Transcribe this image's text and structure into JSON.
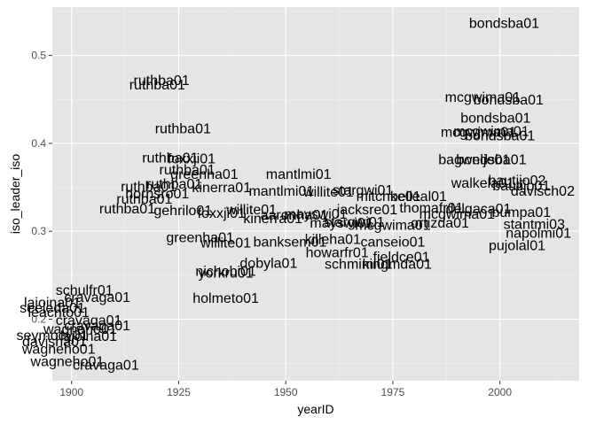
{
  "chart_data": {
    "type": "scatter",
    "title": "",
    "xlabel": "yearID",
    "ylabel": "iso_leader_iso",
    "xlim": [
      1895.5,
      2018.5
    ],
    "ylim": [
      0.13,
      0.555
    ],
    "x_ticks": [
      1900,
      1925,
      1950,
      1975,
      2000
    ],
    "y_ticks": [
      0.2,
      0.3,
      0.4,
      0.5
    ],
    "grid": true,
    "legend": "none",
    "colors": {
      "panel_bg": "#e5e5e5",
      "grid_major": "#ffffff",
      "grid_minor": "#f2f2f2",
      "text": "#000000",
      "tick_text": "#4d4d4d"
    },
    "points": [
      {
        "x": 2001,
        "y": 0.536,
        "label": "bondsba01"
      },
      {
        "x": 1996,
        "y": 0.452,
        "label": "mcgwima01"
      },
      {
        "x": 2002,
        "y": 0.449,
        "label": "bondsba01"
      },
      {
        "x": 1999,
        "y": 0.428,
        "label": "bondsba01"
      },
      {
        "x": 1998,
        "y": 0.413,
        "label": "mcgwima01"
      },
      {
        "x": 1995,
        "y": 0.412,
        "label": "mcgwima01"
      },
      {
        "x": 2000,
        "y": 0.408,
        "label": "bondsba01"
      },
      {
        "x": 1994,
        "y": 0.381,
        "label": "bagwelje01"
      },
      {
        "x": 1998,
        "y": 0.381,
        "label": "bondsba01"
      },
      {
        "x": 1996,
        "y": 0.354,
        "label": "walkela01"
      },
      {
        "x": 2004,
        "y": 0.357,
        "label": "bautijo02"
      },
      {
        "x": 2005,
        "y": 0.351,
        "label": "bautijo01"
      },
      {
        "x": 2010,
        "y": 0.345,
        "label": "davisch02"
      },
      {
        "x": 2005,
        "y": 0.321,
        "label": "bumpa01"
      },
      {
        "x": 2008,
        "y": 0.307,
        "label": "stantmi03"
      },
      {
        "x": 2009,
        "y": 0.297,
        "label": "napolmi01"
      },
      {
        "x": 2004,
        "y": 0.283,
        "label": "pujolal01"
      },
      {
        "x": 1921,
        "y": 0.471,
        "label": "ruthba01"
      },
      {
        "x": 1920,
        "y": 0.466,
        "label": "ruthba01"
      },
      {
        "x": 1926,
        "y": 0.416,
        "label": "ruthba01"
      },
      {
        "x": 1923,
        "y": 0.383,
        "label": "ruthba01"
      },
      {
        "x": 1928,
        "y": 0.382,
        "label": "foxxji01"
      },
      {
        "x": 1927,
        "y": 0.369,
        "label": "ruthba01"
      },
      {
        "x": 1931,
        "y": 0.364,
        "label": "greenha01"
      },
      {
        "x": 1924,
        "y": 0.353,
        "label": "ruthba01"
      },
      {
        "x": 1918,
        "y": 0.35,
        "label": "ruthba01"
      },
      {
        "x": 1920,
        "y": 0.342,
        "label": "hornsro01"
      },
      {
        "x": 1917,
        "y": 0.336,
        "label": "ruthba01"
      },
      {
        "x": 1935,
        "y": 0.349,
        "label": "kinerra01"
      },
      {
        "x": 1953,
        "y": 0.364,
        "label": "mantlmi01"
      },
      {
        "x": 1949,
        "y": 0.345,
        "label": "mantlmi01"
      },
      {
        "x": 1960,
        "y": 0.344,
        "label": "willite01"
      },
      {
        "x": 1968,
        "y": 0.346,
        "label": "stargwi01"
      },
      {
        "x": 1974,
        "y": 0.339,
        "label": "mitchke01"
      },
      {
        "x": 1981,
        "y": 0.339,
        "label": "belleal01"
      },
      {
        "x": 1984,
        "y": 0.326,
        "label": "thomafr01"
      },
      {
        "x": 1995,
        "y": 0.325,
        "label": "delgaca01"
      },
      {
        "x": 1990,
        "y": 0.319,
        "label": "mcgwima01"
      },
      {
        "x": 1957,
        "y": 0.319,
        "label": "mayswi01"
      },
      {
        "x": 1969,
        "y": 0.324,
        "label": "jacksre01"
      },
      {
        "x": 1942,
        "y": 0.324,
        "label": "willite01"
      },
      {
        "x": 1952,
        "y": 0.318,
        "label": "aaronha01"
      },
      {
        "x": 1913,
        "y": 0.325,
        "label": "ruthba01"
      },
      {
        "x": 1926,
        "y": 0.323,
        "label": "gehrilo01"
      },
      {
        "x": 1935,
        "y": 0.32,
        "label": "foxxji01"
      },
      {
        "x": 1947,
        "y": 0.314,
        "label": "kinerra01"
      },
      {
        "x": 1963,
        "y": 0.309,
        "label": "mayswi01"
      },
      {
        "x": 1966,
        "y": 0.31,
        "label": "stargwi01"
      },
      {
        "x": 1975,
        "y": 0.306,
        "label": "mcgwima01"
      },
      {
        "x": 1986,
        "y": 0.309,
        "label": "ortizda01"
      },
      {
        "x": 1930,
        "y": 0.292,
        "label": "greenha01"
      },
      {
        "x": 1936,
        "y": 0.286,
        "label": "willite01"
      },
      {
        "x": 1951,
        "y": 0.287,
        "label": "banksem01"
      },
      {
        "x": 1961,
        "y": 0.29,
        "label": "killeha01"
      },
      {
        "x": 1975,
        "y": 0.287,
        "label": "canseio01"
      },
      {
        "x": 1962,
        "y": 0.275,
        "label": "howarfr01"
      },
      {
        "x": 1977,
        "y": 0.27,
        "label": "fieldce01"
      },
      {
        "x": 1967,
        "y": 0.262,
        "label": "schmimi01"
      },
      {
        "x": 1976,
        "y": 0.262,
        "label": "kingmda01"
      },
      {
        "x": 1936,
        "y": 0.254,
        "label": "nichobi01"
      },
      {
        "x": 1946,
        "y": 0.263,
        "label": "dobyla01"
      },
      {
        "x": 1936,
        "y": 0.252,
        "label": "yorkru01"
      },
      {
        "x": 1936,
        "y": 0.223,
        "label": "holmeto01"
      },
      {
        "x": 1903,
        "y": 0.232,
        "label": "schulfr01"
      },
      {
        "x": 1906,
        "y": 0.224,
        "label": "cravaga01"
      },
      {
        "x": 1895.5,
        "y": 0.218,
        "label": "lajoina01"
      },
      {
        "x": 1895.5,
        "y": 0.212,
        "label": "seeleda01"
      },
      {
        "x": 1897,
        "y": 0.207,
        "label": "leachto01"
      },
      {
        "x": 1904,
        "y": 0.198,
        "label": "cravaga01"
      },
      {
        "x": 1902,
        "y": 0.188,
        "label": "wagneho01"
      },
      {
        "x": 1906,
        "y": 0.192,
        "label": "cravaga01"
      },
      {
        "x": 1895.5,
        "y": 0.181,
        "label": "seymocy01"
      },
      {
        "x": 1904,
        "y": 0.18,
        "label": "lajoina01"
      },
      {
        "x": 1896,
        "y": 0.174,
        "label": "davisha01"
      },
      {
        "x": 1897,
        "y": 0.165,
        "label": "wagneho01"
      },
      {
        "x": 1899,
        "y": 0.151,
        "label": "wagneho01"
      },
      {
        "x": 1908,
        "y": 0.147,
        "label": "cravaga01"
      }
    ]
  }
}
